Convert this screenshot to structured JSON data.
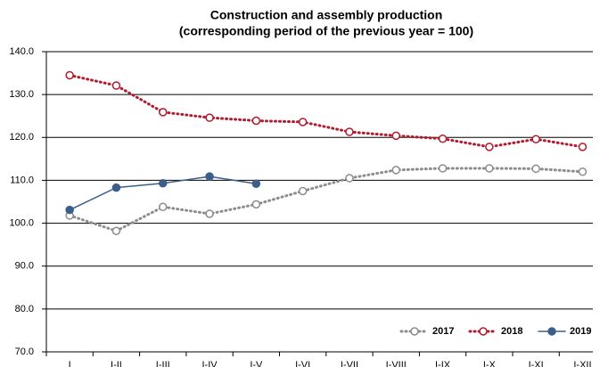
{
  "chart_data": {
    "type": "line",
    "title": "Construction and assembly production",
    "subtitle": "(corresponding period of the previous year = 100)",
    "categories": [
      "I",
      "I-II",
      "I-III",
      "I-IV",
      "I-V",
      "I-VI",
      "I-VII",
      "I-VIII",
      "I-IX",
      "I-X",
      "I-XI",
      "I-XII"
    ],
    "series": [
      {
        "name": "2017",
        "color": "#8c8c8c",
        "dash": true,
        "filled": false,
        "values": [
          101.8,
          98.2,
          103.8,
          102.2,
          104.4,
          107.5,
          110.5,
          112.4,
          112.8,
          112.8,
          112.7,
          112.0
        ]
      },
      {
        "name": "2018",
        "color": "#b01c2e",
        "dash": true,
        "filled": false,
        "values": [
          134.5,
          132.1,
          125.9,
          124.6,
          123.9,
          123.6,
          121.3,
          120.4,
          119.7,
          117.8,
          119.6,
          117.8
        ]
      },
      {
        "name": "2019",
        "color": "#3b5f8a",
        "dash": false,
        "filled": true,
        "values": [
          103.1,
          108.3,
          109.3,
          110.9,
          109.2,
          null,
          null,
          null,
          null,
          null,
          null,
          null
        ]
      }
    ],
    "ylim": [
      70,
      140
    ],
    "yticks": [
      {
        "value": 70,
        "label": "70.0"
      },
      {
        "value": 80,
        "label": "80.0"
      },
      {
        "value": 90,
        "label": "90.0"
      },
      {
        "value": 100,
        "label": "100.0"
      },
      {
        "value": 110,
        "label": "110.0"
      },
      {
        "value": 120,
        "label": "120.0"
      },
      {
        "value": 130,
        "label": "130.0"
      },
      {
        "value": 140,
        "label": "140.0"
      }
    ],
    "grid": true,
    "legend": "bottom-right"
  }
}
